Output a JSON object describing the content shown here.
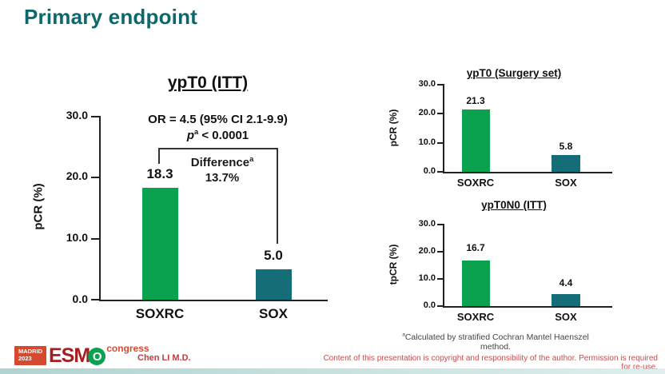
{
  "slide": {
    "title": "Primary endpoint",
    "presenter": "Chen LI M.D.",
    "copyright": "Content of this presentation is copyright and responsibility of the author. Permission is required for re-use.",
    "footnote_sup": "a",
    "footnote_text": "Calculated by stratified Cochran Mantel Haenszel method.",
    "logo": {
      "city": "MADRID",
      "year": "2023",
      "org_prefix": "ESM",
      "org_o": "O",
      "suffix": "congress"
    }
  },
  "colors": {
    "accent_teal": "#0d686c",
    "bar_green": "#0ba24f",
    "bar_teal": "#156d78",
    "red_text": "#c23b3e",
    "copyright_red": "#cc4a4a",
    "logo_red": "#d7492f",
    "logo_dark_red": "#a61e22"
  },
  "chart_data": [
    {
      "id": "ypt0-itt",
      "type": "bar",
      "title": "ypT0 (ITT)",
      "ylabel": "pCR (%)",
      "categories": [
        "SOXRC",
        "SOX"
      ],
      "values": [
        18.3,
        5.0
      ],
      "value_labels": [
        "18.3",
        "5.0"
      ],
      "ylim": [
        0,
        30
      ],
      "yticks": [
        "30.0",
        "20.0",
        "10.0",
        "0.0"
      ],
      "grid": false,
      "annotations": {
        "or_text": "OR = 4.5 (95% CI 2.1-9.9)",
        "p_italic": "p",
        "p_sup": "a",
        "p_rest": " < 0.0001",
        "difference_label": "Difference",
        "difference_sup": "a",
        "difference_value": "13.7%"
      }
    },
    {
      "id": "ypt0-surgery-set",
      "type": "bar",
      "title": "ypT0 (Surgery set)",
      "ylabel": "pCR (%)",
      "categories": [
        "SOXRC",
        "SOX"
      ],
      "values": [
        21.3,
        5.8
      ],
      "value_labels": [
        "21.3",
        "5.8"
      ],
      "ylim": [
        0,
        30
      ],
      "yticks": [
        "30.0",
        "20.0",
        "10.0",
        "0.0"
      ],
      "grid": false
    },
    {
      "id": "ypt0n0-itt",
      "type": "bar",
      "title": "ypT0N0 (ITT)",
      "ylabel": "tpCR (%)",
      "categories": [
        "SOXRC",
        "SOX"
      ],
      "values": [
        16.7,
        4.4
      ],
      "value_labels": [
        "16.7",
        "4.4"
      ],
      "ylim": [
        0,
        30
      ],
      "yticks": [
        "30.0",
        "20.0",
        "10.0",
        "0.0"
      ],
      "grid": false
    }
  ]
}
